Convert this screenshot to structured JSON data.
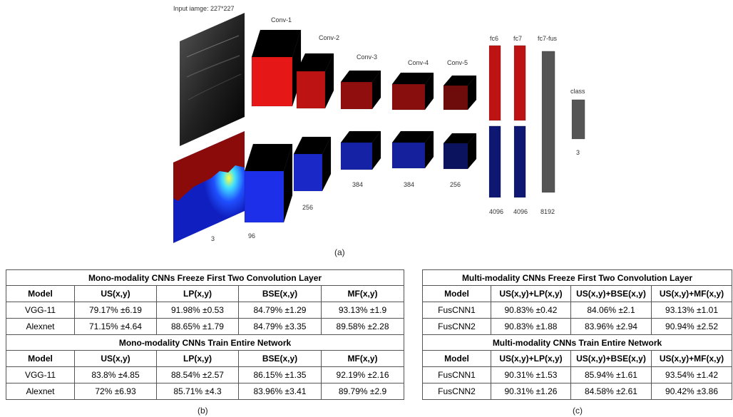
{
  "diagram": {
    "input_label": "Input iamge: 227*227",
    "layer_labels": [
      "Conv-1",
      "Conv-2",
      "Conv-3",
      "Conv-4",
      "Conv-5",
      "fc6",
      "fc7",
      "fc7-fus",
      "class"
    ],
    "size_labels": [
      "3",
      "96",
      "256",
      "384",
      "384",
      "256",
      "4096",
      "4096",
      "8192",
      "3"
    ],
    "colors": {
      "us_stream": "#c81414",
      "mf_stream": "#1a2ad0",
      "fusion": "#555555"
    }
  },
  "captions": {
    "a": "(a)",
    "b": "(b)",
    "c": "(c)"
  },
  "table_b": {
    "freeze_title": "Mono-modality CNNs Freeze First Two Convolution Layer",
    "train_title": "Mono-modality CNNs Train Entire Network",
    "headers": [
      "Model",
      "US(x,y)",
      "LP(x,y)",
      "BSE(x,y)",
      "MF(x,y)"
    ],
    "freeze_rows": [
      [
        "VGG-11",
        "79.17% ±6.19",
        "91.98% ±0.53",
        "84.79% ±1.29",
        "93.13% ±1.9"
      ],
      [
        "Alexnet",
        "71.15% ±4.64",
        "88.65% ±1.79",
        "84.79% ±3.35",
        "89.58% ±2.28"
      ]
    ],
    "train_rows": [
      [
        "VGG-11",
        "83.8% ±4.85",
        "88.54% ±2.57",
        "86.15% ±1.35",
        "92.19% ±2.16"
      ],
      [
        "Alexnet",
        "72% ±6.93",
        "85.71% ±4.3",
        "83.96% ±3.41",
        "89.79% ±2.9"
      ]
    ]
  },
  "table_c": {
    "freeze_title": "Multi-modality CNNs Freeze First Two Convolution Layer",
    "train_title": "Multi-modality CNNs Train Entire Network",
    "headers": [
      "Model",
      "US(x,y)+LP(x,y)",
      "US(x,y)+BSE(x,y)",
      "US(x,y)+MF(x,y)"
    ],
    "freeze_rows": [
      [
        "FusCNN1",
        "90.83% ±0.42",
        "84.06% ±2.1",
        "93.13% ±1.01"
      ],
      [
        "FusCNN2",
        "90.83% ±1.88",
        "83.96% ±2.94",
        "90.94% ±2.52"
      ]
    ],
    "train_rows": [
      [
        "FusCNN1",
        "90.31% ±1.53",
        "85.94% ±1.61",
        "93.54% ±1.42"
      ],
      [
        "FusCNN2",
        "90.31% ±1.26",
        "84.58% ±2.61",
        "90.42% ±3.86"
      ]
    ]
  }
}
